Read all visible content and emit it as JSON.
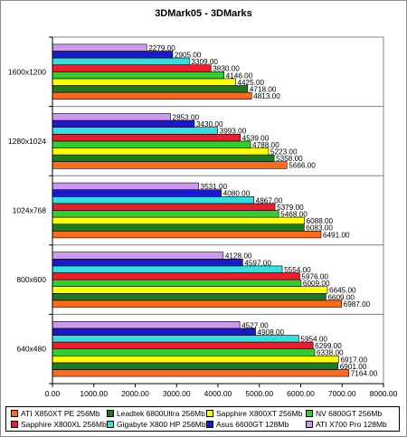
{
  "chart_data": {
    "type": "bar",
    "orientation": "horizontal",
    "title": "3DMark05 - 3DMarks",
    "xlabel": "",
    "ylabel": "",
    "categories": [
      "1600x1200",
      "1280x1024",
      "1024x768",
      "800x600",
      "640x480"
    ],
    "xlim": [
      0,
      8000
    ],
    "x_ticks": [
      "0.00",
      "1000.00",
      "2000.00",
      "3000.00",
      "4000.00",
      "5000.00",
      "6000.00",
      "7000.00",
      "8000.00"
    ],
    "grid": false,
    "legend_position": "bottom",
    "series": [
      {
        "name": "ATI X850XT PE 256Mb",
        "color": "#ff6a1a",
        "values": [
          4813,
          5666,
          6491,
          6987,
          7164
        ],
        "labels": [
          "4813.00",
          "5666.00",
          "6491.00",
          "6987.00",
          "7164.00"
        ]
      },
      {
        "name": "Leadtek 6800Ultra 256Mb",
        "color": "#1f7a1f",
        "values": [
          4718,
          5358,
          6083,
          6609,
          6901
        ],
        "labels": [
          "4718.00",
          "5358.00",
          "6083.00",
          "6609.00",
          "6901.00"
        ]
      },
      {
        "name": "Sapphire X800XT 256Mb",
        "color": "#ffff00",
        "values": [
          4425,
          5223,
          6088,
          6645,
          6917
        ],
        "labels": [
          "4425.00",
          "5223.00",
          "6088.00",
          "6645.00",
          "6917.00"
        ]
      },
      {
        "name": "NV 6800GT 256Mb",
        "color": "#33cc33",
        "values": [
          4146,
          4788,
          5468,
          6009,
          6338
        ],
        "labels": [
          "4146.00",
          "4788.00",
          "5468.00",
          "6009.00",
          "6338.00"
        ]
      },
      {
        "name": "Sapphire X800XL 256Mb",
        "color": "#ee1c2c",
        "values": [
          3830,
          4539,
          5379,
          5976,
          6299
        ],
        "labels": [
          "3830.00",
          "4539.00",
          "5379.00",
          "5976.00",
          "6299.00"
        ]
      },
      {
        "name": "Gigabyte X800 HP 256Mb",
        "color": "#33e0e0",
        "values": [
          3309,
          3993,
          4867,
          5554,
          5954
        ],
        "labels": [
          "3309.00",
          "3993.00",
          "4867.00",
          "5554.00",
          "5954.00"
        ]
      },
      {
        "name": "Asus 6600GT 128Mb",
        "color": "#1a1acc",
        "values": [
          2905,
          3430,
          4080,
          4597,
          4908
        ],
        "labels": [
          "2905.00",
          "3430.00",
          "4080.00",
          "4597.00",
          "4908.00"
        ]
      },
      {
        "name": "ATI X700 Pro 128Mb",
        "color": "#cc99ee",
        "values": [
          2279,
          2853,
          3531,
          4128,
          4527
        ],
        "labels": [
          "2279.00",
          "2853.00",
          "3531.00",
          "4128.00",
          "4527.00"
        ]
      }
    ]
  }
}
